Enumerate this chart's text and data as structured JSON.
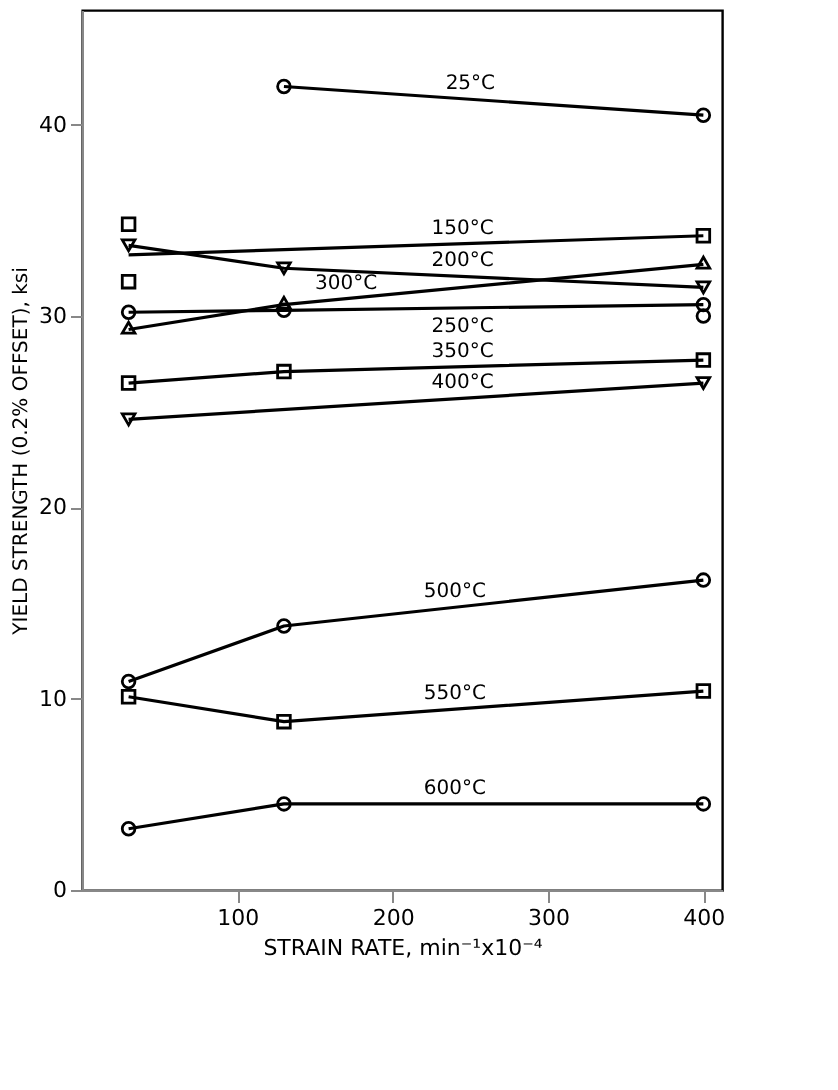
{
  "chart_data": {
    "type": "line",
    "xlabel": "STRAIN RATE, min⁻¹x10⁻⁴",
    "ylabel": "YIELD STRENGTH (0.2% OFFSET), ksi",
    "xlim": [
      0,
      412
    ],
    "ylim": [
      0,
      46
    ],
    "xticks": [
      100,
      200,
      300,
      400
    ],
    "yticks": [
      0,
      10,
      20,
      30,
      40
    ],
    "grid": false,
    "series": [
      {
        "name": "25°C",
        "color": "#000000",
        "marker": "circle",
        "x": [
          130,
          400
        ],
        "values": [
          42.0,
          40.5
        ]
      },
      {
        "name": "150°C",
        "color": "#000000",
        "marker": "none",
        "x": [
          30,
          400
        ],
        "values": [
          33.2,
          34.2
        ]
      },
      {
        "type": "scatter",
        "color": "#000000",
        "marker": "square",
        "x": [
          30,
          30,
          400
        ],
        "values": [
          34.8,
          31.8,
          34.2
        ]
      },
      {
        "name": "200°C",
        "color": "#000000",
        "marker": "triangle-down",
        "x": [
          30,
          130,
          400
        ],
        "values": [
          33.7,
          32.5,
          31.5
        ]
      },
      {
        "name": "300°C",
        "color": "#000000",
        "marker": "triangle",
        "x": [
          30,
          130,
          400
        ],
        "values": [
          29.3,
          30.6,
          32.7
        ]
      },
      {
        "name": "250°C",
        "color": "#000000",
        "marker": "circle",
        "x": [
          30,
          130,
          400
        ],
        "values": [
          30.2,
          30.3,
          30.6
        ]
      },
      {
        "type": "scatter",
        "color": "#000000",
        "marker": "circle",
        "x": [
          400
        ],
        "values": [
          30.0
        ]
      },
      {
        "name": "350°C",
        "color": "#000000",
        "marker": "square",
        "x": [
          30,
          130,
          400
        ],
        "values": [
          26.5,
          27.1,
          27.7
        ]
      },
      {
        "name": "400°C",
        "color": "#000000",
        "marker": "triangle-down",
        "x": [
          30,
          400
        ],
        "values": [
          24.6,
          26.5
        ]
      },
      {
        "name": "500°C",
        "color": "#000000",
        "marker": "circle",
        "x": [
          30,
          130,
          400
        ],
        "values": [
          10.9,
          13.8,
          16.2
        ]
      },
      {
        "name": "550°C",
        "color": "#000000",
        "marker": "square",
        "x": [
          30,
          130,
          400
        ],
        "values": [
          10.1,
          8.8,
          10.4
        ]
      },
      {
        "name": "600°C",
        "color": "#000000",
        "marker": "circle",
        "x": [
          30,
          130,
          400
        ],
        "values": [
          3.2,
          4.5,
          4.5
        ]
      }
    ]
  }
}
